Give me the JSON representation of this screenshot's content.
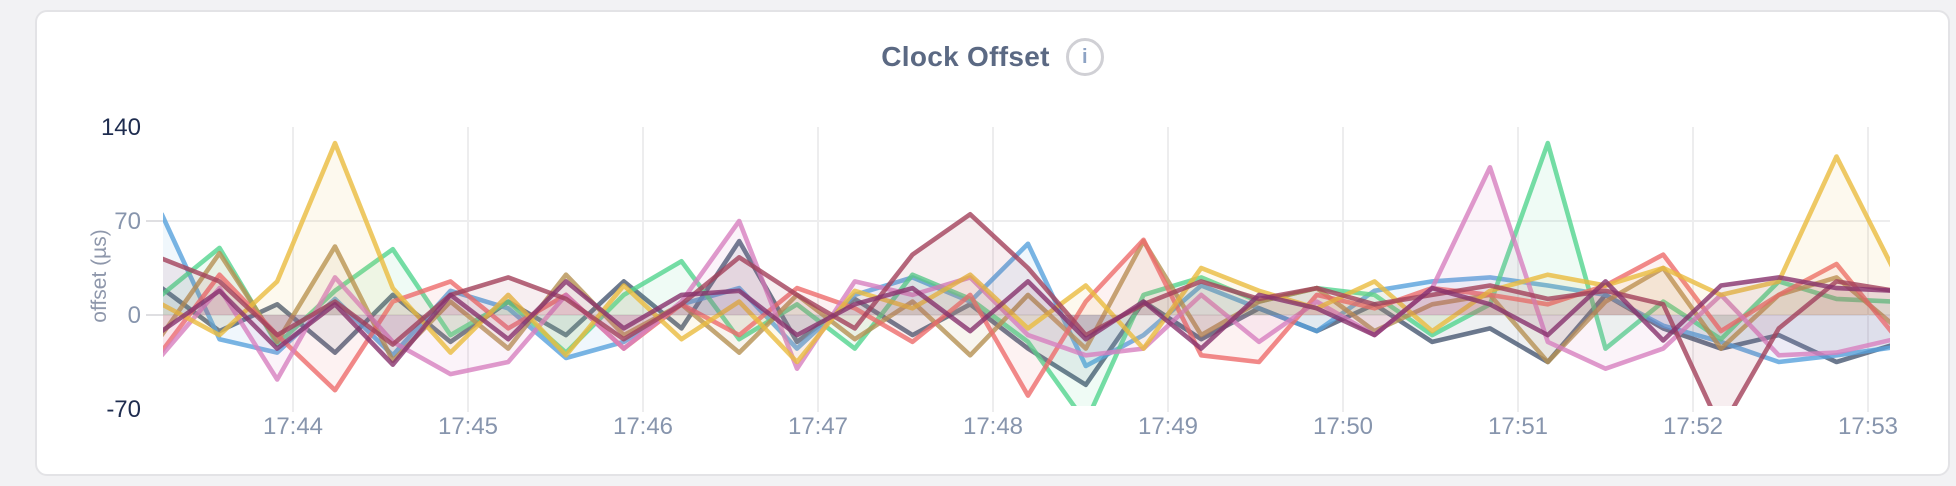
{
  "card": {
    "title": "Clock Offset",
    "info_glyph": "i"
  },
  "y_axis": {
    "label": "offset (µs)",
    "ticks": [
      {
        "label": "140",
        "value": 140,
        "dark": true
      },
      {
        "label": "70",
        "value": 70,
        "dark": false
      },
      {
        "label": "0",
        "value": 0,
        "dark": false
      },
      {
        "label": "-70",
        "value": -70,
        "dark": true
      }
    ]
  },
  "x_axis": {
    "ticks": [
      {
        "label": "17:44",
        "minute": 44
      },
      {
        "label": "17:45",
        "minute": 45
      },
      {
        "label": "17:46",
        "minute": 46
      },
      {
        "label": "17:47",
        "minute": 47
      },
      {
        "label": "17:48",
        "minute": 48
      },
      {
        "label": "17:49",
        "minute": 49
      },
      {
        "label": "17:50",
        "minute": 50
      },
      {
        "label": "17:51",
        "minute": 51
      },
      {
        "label": "17:52",
        "minute": 52
      },
      {
        "label": "17:53",
        "minute": 53
      }
    ]
  },
  "colors": {
    "card_border": "#e3e3e6",
    "page_background": "#f2f2f4",
    "title_text": "#5b6983",
    "axis_text_gray": "#8795ad",
    "axis_text_dark": "#1e2c4f",
    "gridline": "#ededee",
    "tick_mark": "#dfdfe2"
  },
  "chart_data": {
    "type": "line",
    "title": "Clock Offset",
    "xlabel": "",
    "ylabel": "offset (µs)",
    "ylim": [
      -70,
      140
    ],
    "xlim_minutes": [
      43.25,
      53.15
    ],
    "grid": true,
    "legend": "none",
    "x_tick_labels": [
      "17:44",
      "17:45",
      "17:46",
      "17:47",
      "17:48",
      "17:49",
      "17:50",
      "17:51",
      "17:52",
      "17:53"
    ],
    "x": [
      43.25,
      43.58,
      43.91,
      44.24,
      44.57,
      44.9,
      45.23,
      45.56,
      45.89,
      46.22,
      46.55,
      46.88,
      47.21,
      47.54,
      47.87,
      48.2,
      48.53,
      48.86,
      49.19,
      49.52,
      49.85,
      50.18,
      50.51,
      50.84,
      51.17,
      51.5,
      51.83,
      52.16,
      52.49,
      52.82,
      53.15
    ],
    "series": [
      {
        "name": "slate",
        "color": "#475872",
        "values": [
          20,
          -12,
          8,
          -28,
          15,
          -20,
          10,
          -15,
          25,
          -10,
          55,
          -20,
          12,
          -15,
          8,
          -25,
          -52,
          10,
          -18,
          5,
          -12,
          8,
          -20,
          -10,
          -35,
          15,
          -10,
          -25,
          -15,
          -35,
          -22
        ]
      },
      {
        "name": "blue",
        "color": "#57A1DC",
        "values": [
          75,
          -18,
          -28,
          12,
          -30,
          18,
          5,
          -32,
          -20,
          8,
          20,
          -25,
          15,
          28,
          10,
          53,
          -38,
          -15,
          22,
          5,
          -12,
          18,
          25,
          28,
          22,
          15,
          -8,
          -20,
          -35,
          -30,
          -24
        ]
      },
      {
        "name": "green",
        "color": "#52D48E",
        "values": [
          15,
          50,
          -22,
          18,
          49,
          -15,
          10,
          -28,
          15,
          40,
          -18,
          8,
          -25,
          30,
          12,
          -20,
          -80,
          15,
          28,
          10,
          20,
          15,
          -15,
          8,
          128,
          -25,
          10,
          -18,
          25,
          12,
          10
        ]
      },
      {
        "name": "olive",
        "color": "#B59153",
        "values": [
          -15,
          46,
          -20,
          51,
          -34,
          10,
          -25,
          30,
          -15,
          8,
          -28,
          15,
          -18,
          10,
          -30,
          15,
          -25,
          55,
          -15,
          10,
          20,
          -12,
          8,
          15,
          -35,
          10,
          35,
          -25,
          15,
          28,
          -8
        ]
      },
      {
        "name": "red",
        "color": "#EE6C6C",
        "values": [
          -27,
          30,
          -15,
          -56,
          10,
          25,
          -10,
          15,
          -25,
          8,
          -15,
          20,
          5,
          -20,
          15,
          -60,
          10,
          56,
          -30,
          -35,
          15,
          5,
          20,
          15,
          8,
          22,
          45,
          -12,
          15,
          38,
          -15
        ]
      },
      {
        "name": "pink",
        "color": "#D77FBF",
        "values": [
          -30,
          20,
          -48,
          28,
          -20,
          -44,
          -35,
          15,
          -25,
          10,
          70,
          -40,
          25,
          15,
          28,
          -15,
          -30,
          -25,
          15,
          -20,
          10,
          -15,
          20,
          110,
          -20,
          -40,
          -25,
          15,
          -30,
          -28,
          -18
        ]
      },
      {
        "name": "gold",
        "color": "#EABC3F",
        "values": [
          8,
          -15,
          25,
          128,
          20,
          -28,
          15,
          -30,
          22,
          -18,
          10,
          -35,
          18,
          5,
          30,
          -10,
          22,
          -25,
          35,
          18,
          5,
          25,
          -12,
          18,
          30,
          22,
          35,
          15,
          25,
          118,
          33
        ]
      },
      {
        "name": "maroon",
        "color": "#A3415B",
        "values": [
          42,
          25,
          -15,
          10,
          -22,
          15,
          28,
          12,
          -18,
          8,
          43,
          15,
          -10,
          45,
          75,
          35,
          -15,
          8,
          25,
          12,
          20,
          8,
          15,
          22,
          12,
          18,
          8,
          -85,
          -10,
          25,
          18
        ]
      },
      {
        "name": "plum",
        "color": "#87326D",
        "values": [
          -12,
          18,
          -25,
          8,
          -37,
          15,
          -18,
          25,
          -10,
          15,
          18,
          -15,
          8,
          20,
          -12,
          25,
          -18,
          10,
          -25,
          15,
          5,
          -15,
          20,
          8,
          -15,
          25,
          -19,
          22,
          28,
          20,
          18
        ]
      }
    ]
  }
}
